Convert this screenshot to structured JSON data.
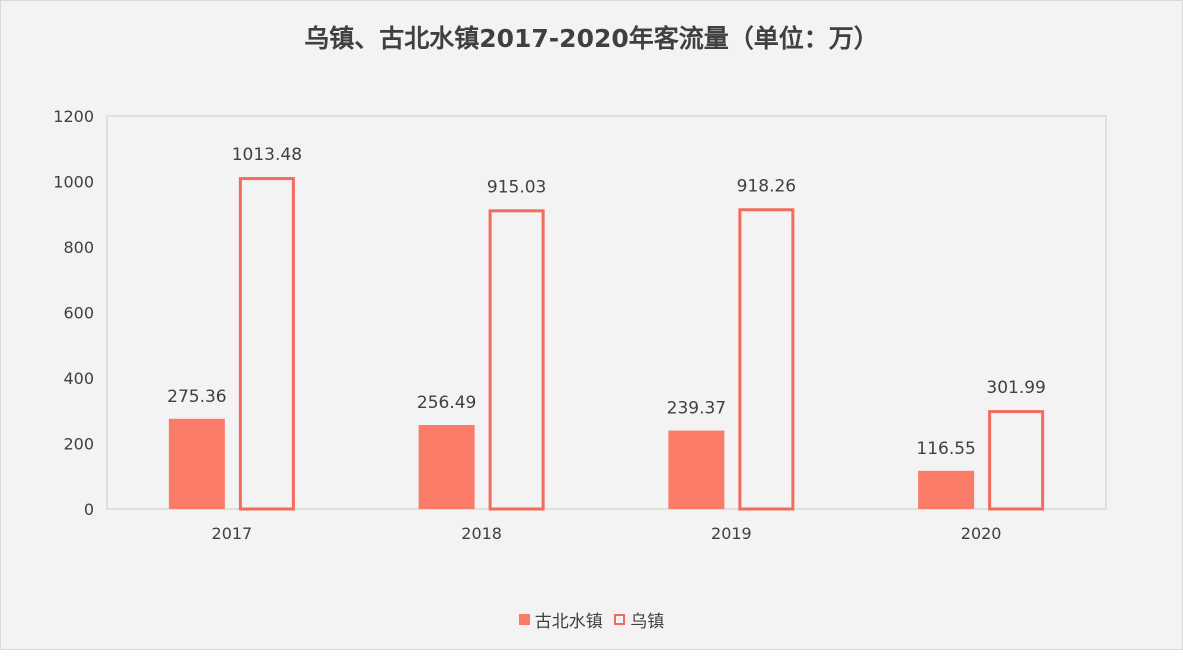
{
  "chart_data": {
    "type": "bar",
    "title": "乌镇、古北水镇2017-2020年客流量（单位：万）",
    "categories": [
      "2017",
      "2018",
      "2019",
      "2020"
    ],
    "series": [
      {
        "name": "古北水镇",
        "values": [
          275.36,
          256.49,
          239.37,
          116.55
        ],
        "color": "#fa7b68",
        "style": "filled"
      },
      {
        "name": "乌镇",
        "values": [
          1013.48,
          915.03,
          918.26,
          301.99
        ],
        "color": "#f26b5b",
        "style": "outline"
      }
    ],
    "data_labels": [
      [
        "275.36",
        "256.49",
        "239.37",
        "116.55"
      ],
      [
        "1013.48",
        "915.03",
        "918.26",
        "301.99"
      ]
    ],
    "y_ticks": [
      "0",
      "200",
      "400",
      "600",
      "800",
      "1000",
      "1200"
    ],
    "ylim": [
      0,
      1200
    ],
    "grid": false,
    "legend_position": "bottom",
    "background": "#f3f3f3",
    "axis_color": "#d9d9d9",
    "text_color": "#404040"
  }
}
